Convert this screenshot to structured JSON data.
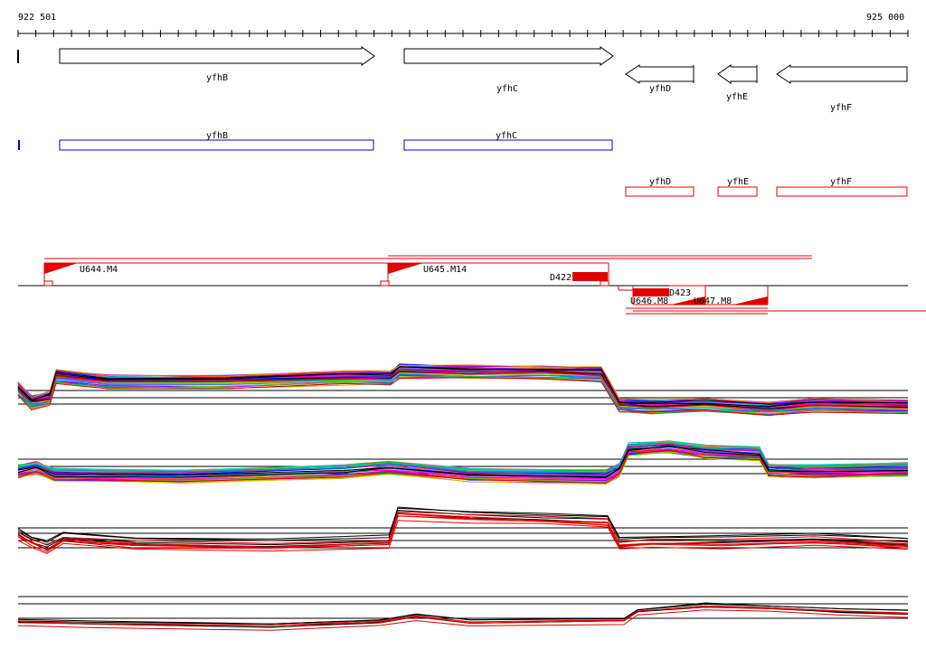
{
  "ruler": {
    "start_label": "922 501",
    "end_label": "925 000"
  },
  "colors": {
    "gene_outline": "#000000",
    "blue_track": "#0000cc",
    "red_track": "#e00000",
    "black": "#000000"
  },
  "genes_arrows": [
    {
      "label": "yfhB",
      "strand": "+"
    },
    {
      "label": "yfhC",
      "strand": "+"
    },
    {
      "label": "yfhD",
      "strand": "-"
    },
    {
      "label": "yfhE",
      "strand": "-"
    },
    {
      "label": "yfhF",
      "strand": "-"
    }
  ],
  "blue_track": [
    "yfhB",
    "yfhC"
  ],
  "red_track": [
    "yfhD",
    "yfhE",
    "yfhF"
  ],
  "transcription_units": [
    {
      "label": "U644.M4"
    },
    {
      "label": "U645.M14"
    },
    {
      "label": "D422"
    },
    {
      "label": "U646.M8"
    },
    {
      "label": "D423"
    },
    {
      "label": "U647.M8"
    }
  ],
  "expression_panels": [
    {
      "name": "expression-panel-1"
    },
    {
      "name": "expression-panel-2"
    },
    {
      "name": "expression-panel-3"
    },
    {
      "name": "expression-panel-4"
    }
  ]
}
